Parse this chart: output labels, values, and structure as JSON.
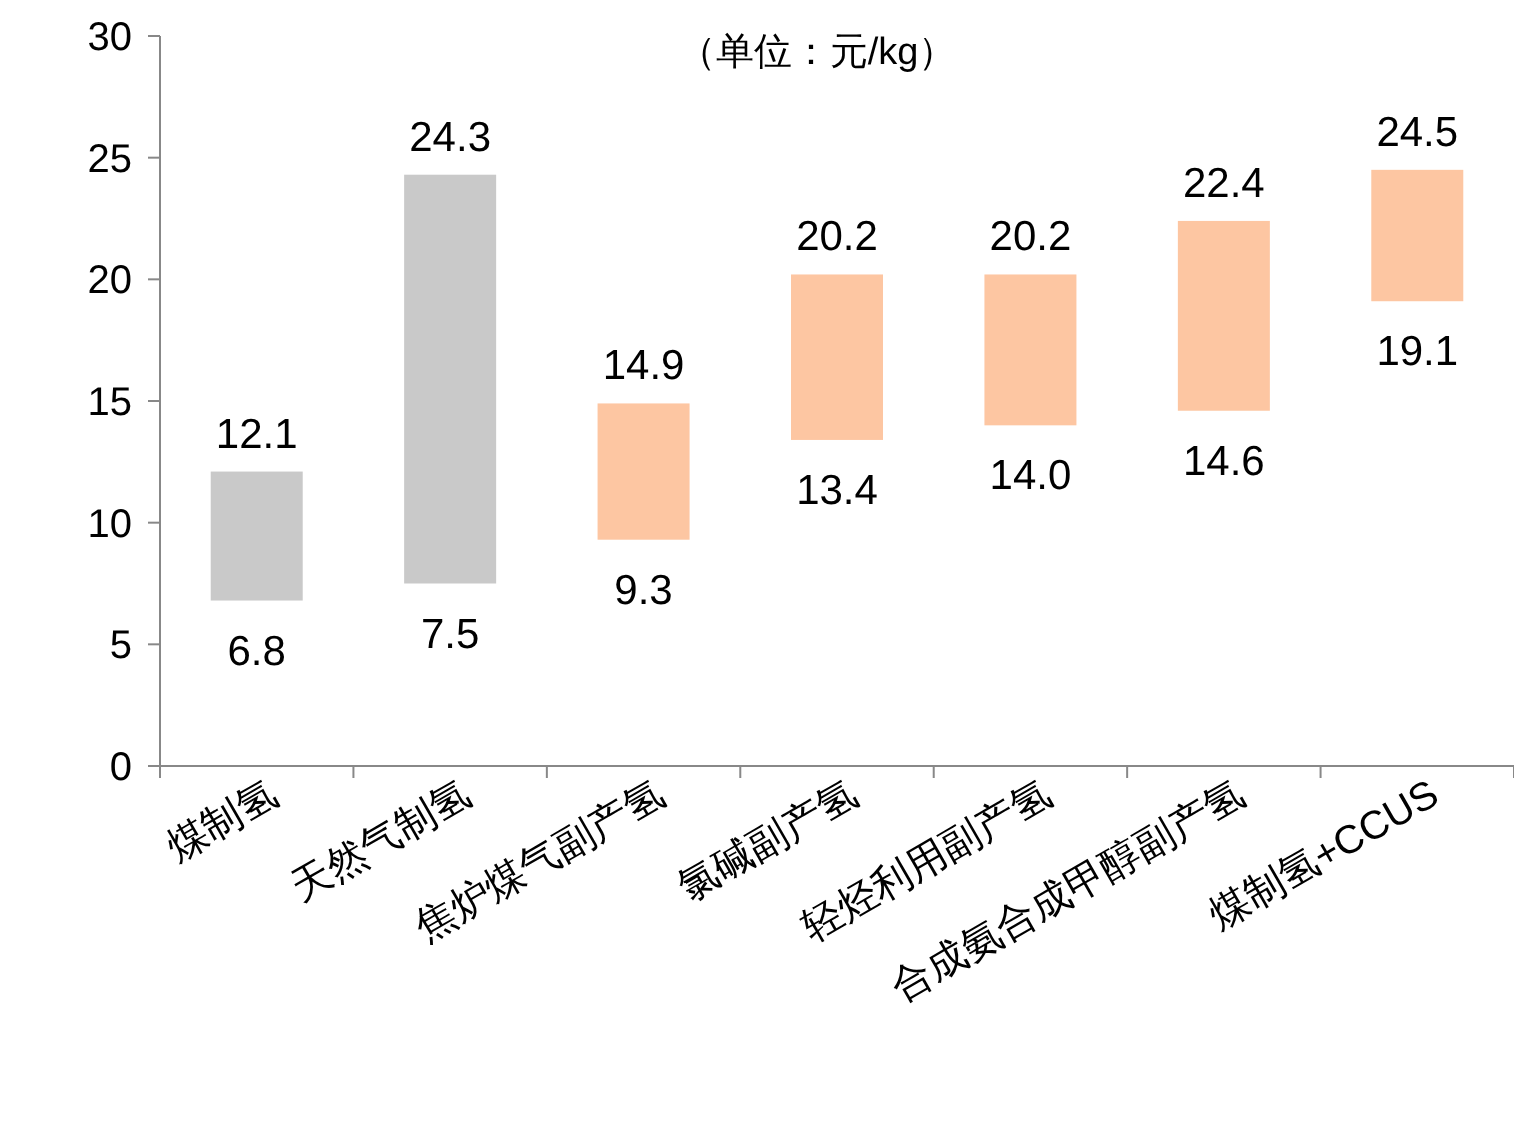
{
  "chart_data": {
    "type": "bar",
    "title": "（单位：元/kg）",
    "categories": [
      "煤制氢",
      "天然气制氢",
      "焦炉煤气副产氢",
      "氯碱副产氢",
      "轻烃利用副产氢",
      "合成氨合成甲醇副产氢",
      "煤制氢+CCUS"
    ],
    "base": [
      6.8,
      7.5,
      9.3,
      13.4,
      14.0,
      14.6,
      19.1
    ],
    "values": [
      5.3,
      16.8,
      5.6,
      6.8,
      6.2,
      7.8,
      5.4
    ],
    "colors": [
      "#c9c9c9",
      "#c9c9c9",
      "#fdc6a2",
      "#fdc6a2",
      "#fdc6a2",
      "#fdc6a2",
      "#fdc6a2"
    ],
    "ylim": [
      0,
      30
    ],
    "yticks": [
      0,
      5,
      10,
      15,
      20,
      25,
      30
    ],
    "grid": false,
    "annotations": [
      {
        "text": "12.1",
        "x": "煤制氢",
        "y": 12.1
      },
      {
        "text": "6.8",
        "x": "煤制氢",
        "y": 6.8
      },
      {
        "text": "24.3",
        "x": "天然气制氢",
        "y": 24.3
      },
      {
        "text": "7.5",
        "x": "天然气制氢",
        "y": 7.5
      },
      {
        "text": "14.9",
        "x": "焦炉煤气副产氢",
        "y": 14.9
      },
      {
        "text": "9.3",
        "x": "焦炉煤气副产氢",
        "y": 9.3
      },
      {
        "text": "20.2",
        "x": "氯碱副产氢",
        "y": 20.2
      },
      {
        "text": "13.4",
        "x": "氯碱副产氢",
        "y": 13.4
      },
      {
        "text": "20.2",
        "x": "轻烃利用副产氢",
        "y": 20.2
      },
      {
        "text": "14.0",
        "x": "轻烃利用副产氢",
        "y": 14.0
      },
      {
        "text": "22.4",
        "x": "合成氨合成甲醇副产氢",
        "y": 22.4
      },
      {
        "text": "14.6",
        "x": "合成氨合成甲醇副产氢",
        "y": 14.6
      },
      {
        "text": "24.5",
        "x": "煤制氢+CCUS",
        "y": 24.5
      },
      {
        "text": "19.1",
        "x": "煤制氢+CCUS",
        "y": 19.1
      }
    ]
  }
}
